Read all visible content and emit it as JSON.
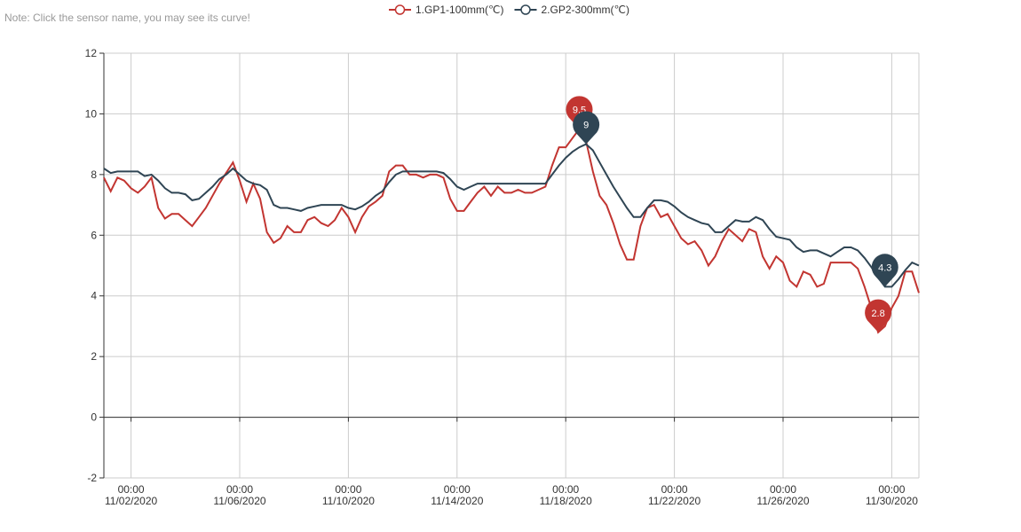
{
  "note": "Note: Click the sensor name, you may see its curve!",
  "chart_data": {
    "type": "line",
    "x": [
      "2020-11-01T00:00",
      "2020-11-01T06:00",
      "2020-11-01T12:00",
      "2020-11-01T18:00",
      "2020-11-02T00:00",
      "2020-11-02T06:00",
      "2020-11-02T12:00",
      "2020-11-02T18:00",
      "2020-11-03T00:00",
      "2020-11-03T06:00",
      "2020-11-03T12:00",
      "2020-11-03T18:00",
      "2020-11-04T00:00",
      "2020-11-04T06:00",
      "2020-11-04T12:00",
      "2020-11-04T18:00",
      "2020-11-05T00:00",
      "2020-11-05T06:00",
      "2020-11-05T12:00",
      "2020-11-05T18:00",
      "2020-11-06T00:00",
      "2020-11-06T06:00",
      "2020-11-06T12:00",
      "2020-11-06T18:00",
      "2020-11-07T00:00",
      "2020-11-07T06:00",
      "2020-11-07T12:00",
      "2020-11-07T18:00",
      "2020-11-08T00:00",
      "2020-11-08T06:00",
      "2020-11-08T12:00",
      "2020-11-08T18:00",
      "2020-11-09T00:00",
      "2020-11-09T06:00",
      "2020-11-09T12:00",
      "2020-11-09T18:00",
      "2020-11-10T00:00",
      "2020-11-10T06:00",
      "2020-11-10T12:00",
      "2020-11-10T18:00",
      "2020-11-11T00:00",
      "2020-11-11T06:00",
      "2020-11-11T12:00",
      "2020-11-11T18:00",
      "2020-11-12T00:00",
      "2020-11-12T06:00",
      "2020-11-12T12:00",
      "2020-11-12T18:00",
      "2020-11-13T00:00",
      "2020-11-13T06:00",
      "2020-11-13T12:00",
      "2020-11-13T18:00",
      "2020-11-14T00:00",
      "2020-11-14T06:00",
      "2020-11-14T12:00",
      "2020-11-14T18:00",
      "2020-11-15T00:00",
      "2020-11-15T06:00",
      "2020-11-15T12:00",
      "2020-11-15T18:00",
      "2020-11-16T00:00",
      "2020-11-16T06:00",
      "2020-11-16T12:00",
      "2020-11-16T18:00",
      "2020-11-17T00:00",
      "2020-11-17T06:00",
      "2020-11-17T12:00",
      "2020-11-17T18:00",
      "2020-11-18T00:00",
      "2020-11-18T06:00",
      "2020-11-18T12:00",
      "2020-11-18T18:00",
      "2020-11-19T00:00",
      "2020-11-19T06:00",
      "2020-11-19T12:00",
      "2020-11-19T18:00",
      "2020-11-20T00:00",
      "2020-11-20T06:00",
      "2020-11-20T12:00",
      "2020-11-20T18:00",
      "2020-11-21T00:00",
      "2020-11-21T06:00",
      "2020-11-21T12:00",
      "2020-11-21T18:00",
      "2020-11-22T00:00",
      "2020-11-22T06:00",
      "2020-11-22T12:00",
      "2020-11-22T18:00",
      "2020-11-23T00:00",
      "2020-11-23T06:00",
      "2020-11-23T12:00",
      "2020-11-23T18:00",
      "2020-11-24T00:00",
      "2020-11-24T06:00",
      "2020-11-24T12:00",
      "2020-11-24T18:00",
      "2020-11-25T00:00",
      "2020-11-25T06:00",
      "2020-11-25T12:00",
      "2020-11-25T18:00",
      "2020-11-26T00:00",
      "2020-11-26T06:00",
      "2020-11-26T12:00",
      "2020-11-26T18:00",
      "2020-11-27T00:00",
      "2020-11-27T06:00",
      "2020-11-27T12:00",
      "2020-11-27T18:00",
      "2020-11-28T00:00",
      "2020-11-28T06:00",
      "2020-11-28T12:00",
      "2020-11-28T18:00",
      "2020-11-29T00:00",
      "2020-11-29T06:00",
      "2020-11-29T12:00",
      "2020-11-29T18:00",
      "2020-11-30T00:00",
      "2020-11-30T06:00",
      "2020-11-30T12:00",
      "2020-11-30T18:00",
      "2020-12-01T00:00"
    ],
    "series": [
      {
        "name": "1.GP1-100mm(℃)",
        "color": "#c23531",
        "values": [
          7.9,
          7.45,
          7.9,
          7.8,
          7.55,
          7.4,
          7.6,
          7.9,
          6.9,
          6.55,
          6.7,
          6.7,
          6.5,
          6.3,
          6.6,
          6.9,
          7.3,
          7.7,
          8.05,
          8.4,
          7.8,
          7.1,
          7.7,
          7.2,
          6.1,
          5.75,
          5.9,
          6.3,
          6.1,
          6.1,
          6.5,
          6.6,
          6.4,
          6.3,
          6.5,
          6.9,
          6.6,
          6.1,
          6.6,
          6.95,
          7.1,
          7.3,
          8.1,
          8.3,
          8.3,
          8.0,
          8.0,
          7.9,
          8.0,
          8.0,
          7.9,
          7.2,
          6.8,
          6.8,
          7.1,
          7.4,
          7.6,
          7.3,
          7.6,
          7.4,
          7.4,
          7.5,
          7.4,
          7.4,
          7.5,
          7.6,
          8.3,
          8.9,
          8.9,
          9.2,
          9.5,
          9.1,
          8.1,
          7.3,
          7.0,
          6.4,
          5.7,
          5.2,
          5.2,
          6.3,
          6.9,
          7.0,
          6.6,
          6.7,
          6.3,
          5.9,
          5.7,
          5.8,
          5.5,
          5.0,
          5.3,
          5.8,
          6.2,
          6.0,
          5.8,
          6.2,
          6.1,
          5.3,
          4.9,
          5.3,
          5.1,
          4.5,
          4.3,
          4.8,
          4.7,
          4.3,
          4.4,
          5.1,
          5.1,
          5.1,
          5.1,
          4.9,
          4.3,
          3.6,
          2.8,
          3.0,
          3.6,
          4.0,
          4.8,
          4.8,
          4.1
        ]
      },
      {
        "name": "2.GP2-300mm(℃)",
        "color": "#2f4554",
        "values": [
          8.2,
          8.05,
          8.1,
          8.1,
          8.1,
          8.1,
          7.95,
          8.0,
          7.8,
          7.55,
          7.4,
          7.4,
          7.35,
          7.15,
          7.2,
          7.4,
          7.6,
          7.85,
          8.0,
          8.2,
          8.0,
          7.8,
          7.7,
          7.65,
          7.5,
          7.0,
          6.9,
          6.9,
          6.85,
          6.8,
          6.9,
          6.95,
          7.0,
          7.0,
          7.0,
          7.0,
          6.9,
          6.85,
          6.95,
          7.1,
          7.3,
          7.45,
          7.75,
          8.0,
          8.1,
          8.1,
          8.1,
          8.1,
          8.1,
          8.1,
          8.05,
          7.85,
          7.6,
          7.5,
          7.6,
          7.7,
          7.7,
          7.7,
          7.7,
          7.7,
          7.7,
          7.7,
          7.7,
          7.7,
          7.7,
          7.7,
          8.0,
          8.3,
          8.55,
          8.75,
          8.9,
          9.0,
          8.8,
          8.4,
          8.0,
          7.6,
          7.25,
          6.9,
          6.6,
          6.6,
          6.9,
          7.15,
          7.15,
          7.1,
          6.95,
          6.75,
          6.6,
          6.5,
          6.4,
          6.35,
          6.1,
          6.1,
          6.3,
          6.5,
          6.45,
          6.45,
          6.6,
          6.5,
          6.2,
          5.95,
          5.9,
          5.85,
          5.6,
          5.45,
          5.5,
          5.5,
          5.4,
          5.3,
          5.45,
          5.6,
          5.6,
          5.5,
          5.25,
          4.95,
          4.6,
          4.3,
          4.3,
          4.55,
          4.85,
          5.1,
          5.0
        ]
      }
    ],
    "xlim": [
      "2020-11-01T00:00",
      "2020-12-01T00:00"
    ],
    "xticks": [
      {
        "value": "2020-11-02T00:00",
        "label": "00:00\n11/02/2020"
      },
      {
        "value": "2020-11-06T00:00",
        "label": "00:00\n11/06/2020"
      },
      {
        "value": "2020-11-10T00:00",
        "label": "00:00\n11/10/2020"
      },
      {
        "value": "2020-11-14T00:00",
        "label": "00:00\n11/14/2020"
      },
      {
        "value": "2020-11-18T00:00",
        "label": "00:00\n11/18/2020"
      },
      {
        "value": "2020-11-22T00:00",
        "label": "00:00\n11/22/2020"
      },
      {
        "value": "2020-11-26T00:00",
        "label": "00:00\n11/26/2020"
      },
      {
        "value": "2020-11-30T00:00",
        "label": "00:00\n11/30/2020"
      }
    ],
    "ylim": [
      -2,
      12
    ],
    "yticks": [
      -2,
      0,
      2,
      4,
      6,
      8,
      10,
      12
    ],
    "grid": true,
    "legend": "top"
  }
}
